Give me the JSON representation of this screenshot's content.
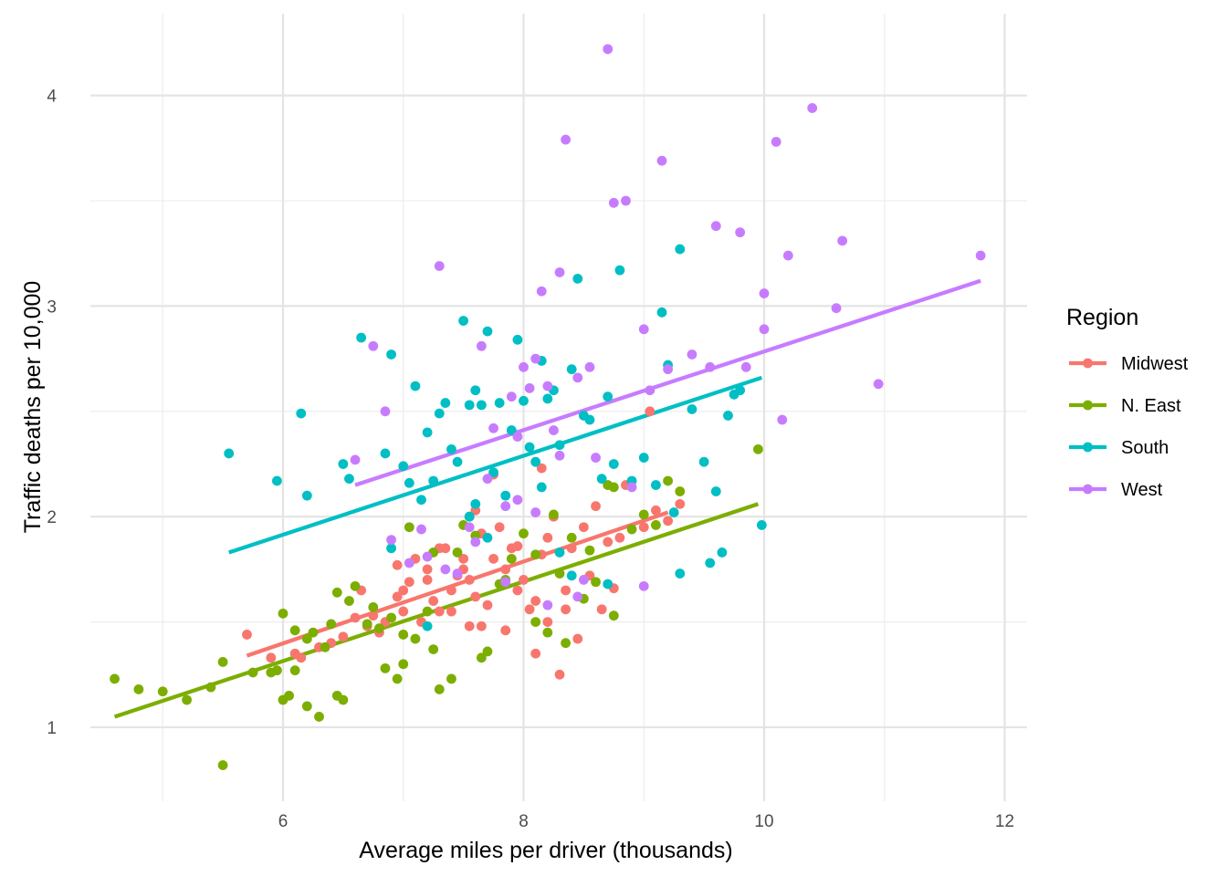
{
  "chart_data": {
    "type": "scatter",
    "title": "",
    "xlabel": "Average miles per driver (thousands)",
    "ylabel": "Traffic deaths per 10,000",
    "xlim": [
      4.4,
      12.2
    ],
    "ylim": [
      0.66,
      4.3
    ],
    "x_ticks": [
      6,
      8,
      10,
      12
    ],
    "y_ticks": [
      1,
      2,
      3,
      4
    ],
    "grid": true,
    "legend": {
      "title": "Region",
      "placement": "right"
    },
    "series": [
      {
        "name": "Midwest",
        "color": "#F8766D",
        "trend": {
          "x": [
            5.7,
            9.2
          ],
          "y": [
            1.34,
            2.02
          ]
        },
        "points": [
          [
            5.7,
            1.44
          ],
          [
            5.9,
            1.33
          ],
          [
            6.1,
            1.35
          ],
          [
            6.15,
            1.33
          ],
          [
            6.3,
            1.38
          ],
          [
            6.5,
            1.43
          ],
          [
            6.6,
            1.52
          ],
          [
            6.65,
            1.65
          ],
          [
            6.7,
            1.48
          ],
          [
            6.75,
            1.53
          ],
          [
            6.8,
            1.45
          ],
          [
            6.85,
            1.5
          ],
          [
            6.9,
            1.52
          ],
          [
            6.95,
            1.62
          ],
          [
            7.0,
            1.55
          ],
          [
            7.0,
            1.65
          ],
          [
            7.05,
            1.69
          ],
          [
            7.1,
            1.8
          ],
          [
            7.15,
            1.5
          ],
          [
            7.2,
            1.75
          ],
          [
            7.25,
            1.6
          ],
          [
            7.3,
            1.55
          ],
          [
            7.35,
            1.85
          ],
          [
            7.4,
            1.65
          ],
          [
            7.45,
            1.72
          ],
          [
            7.5,
            1.8
          ],
          [
            7.5,
            1.75
          ],
          [
            7.55,
            1.7
          ],
          [
            7.6,
            1.62
          ],
          [
            7.65,
            1.92
          ],
          [
            7.7,
            1.58
          ],
          [
            7.75,
            1.8
          ],
          [
            7.8,
            1.95
          ],
          [
            7.85,
            1.75
          ],
          [
            7.9,
            1.85
          ],
          [
            7.95,
            1.65
          ],
          [
            8.0,
            1.7
          ],
          [
            8.05,
            1.56
          ],
          [
            8.1,
            1.35
          ],
          [
            8.15,
            1.82
          ],
          [
            8.2,
            1.9
          ],
          [
            8.25,
            2.0
          ],
          [
            8.3,
            1.25
          ],
          [
            8.35,
            1.65
          ],
          [
            8.4,
            1.85
          ],
          [
            8.45,
            1.42
          ],
          [
            8.5,
            1.95
          ],
          [
            8.55,
            1.72
          ],
          [
            8.6,
            2.05
          ],
          [
            8.65,
            1.56
          ],
          [
            8.7,
            1.88
          ],
          [
            8.75,
            1.66
          ],
          [
            8.8,
            1.9
          ],
          [
            8.85,
            2.15
          ],
          [
            9.0,
            1.95
          ],
          [
            9.05,
            2.5
          ],
          [
            9.1,
            2.03
          ],
          [
            9.2,
            1.98
          ],
          [
            9.3,
            2.06
          ],
          [
            7.3,
            1.85
          ],
          [
            7.55,
            1.48
          ],
          [
            7.85,
            1.46
          ],
          [
            6.4,
            1.4
          ],
          [
            8.2,
            1.5
          ],
          [
            7.6,
            2.03
          ],
          [
            8.1,
            1.6
          ],
          [
            7.75,
            2.2
          ],
          [
            8.15,
            2.23
          ],
          [
            7.4,
            1.55
          ],
          [
            6.95,
            1.77
          ],
          [
            7.2,
            1.7
          ],
          [
            7.65,
            1.48
          ],
          [
            7.95,
            1.86
          ],
          [
            8.35,
            1.56
          ]
        ]
      },
      {
        "name": "N. East",
        "color": "#7CAE00",
        "trend": {
          "x": [
            4.6,
            9.95
          ],
          "y": [
            1.05,
            2.06
          ]
        },
        "points": [
          [
            4.6,
            1.23
          ],
          [
            4.8,
            1.18
          ],
          [
            5.0,
            1.17
          ],
          [
            5.2,
            1.13
          ],
          [
            5.4,
            1.19
          ],
          [
            5.5,
            1.31
          ],
          [
            5.5,
            0.82
          ],
          [
            5.75,
            1.26
          ],
          [
            5.9,
            1.26
          ],
          [
            6.0,
            1.13
          ],
          [
            6.05,
            1.15
          ],
          [
            6.1,
            1.27
          ],
          [
            6.2,
            1.1
          ],
          [
            6.25,
            1.45
          ],
          [
            6.3,
            1.05
          ],
          [
            6.35,
            1.38
          ],
          [
            6.4,
            1.49
          ],
          [
            6.45,
            1.15
          ],
          [
            6.5,
            1.13
          ],
          [
            6.55,
            1.6
          ],
          [
            6.6,
            1.67
          ],
          [
            6.7,
            1.49
          ],
          [
            6.8,
            1.47
          ],
          [
            6.85,
            1.28
          ],
          [
            6.9,
            1.52
          ],
          [
            6.95,
            1.23
          ],
          [
            7.0,
            1.3
          ],
          [
            7.05,
            1.95
          ],
          [
            7.1,
            1.42
          ],
          [
            7.2,
            1.55
          ],
          [
            7.25,
            1.37
          ],
          [
            7.3,
            1.18
          ],
          [
            7.4,
            1.23
          ],
          [
            7.45,
            1.83
          ],
          [
            7.5,
            1.96
          ],
          [
            7.55,
            2.0
          ],
          [
            7.6,
            1.91
          ],
          [
            7.65,
            1.33
          ],
          [
            7.7,
            1.36
          ],
          [
            7.8,
            1.68
          ],
          [
            7.85,
            1.7
          ],
          [
            7.9,
            1.8
          ],
          [
            8.0,
            1.92
          ],
          [
            8.1,
            1.82
          ],
          [
            8.1,
            1.5
          ],
          [
            8.2,
            1.45
          ],
          [
            8.25,
            2.01
          ],
          [
            8.3,
            1.73
          ],
          [
            8.4,
            1.9
          ],
          [
            8.5,
            1.61
          ],
          [
            8.6,
            1.69
          ],
          [
            8.7,
            2.15
          ],
          [
            8.75,
            1.53
          ],
          [
            8.9,
            1.94
          ],
          [
            9.0,
            2.01
          ],
          [
            9.1,
            1.96
          ],
          [
            9.2,
            2.17
          ],
          [
            9.3,
            2.12
          ],
          [
            9.95,
            2.32
          ],
          [
            6.0,
            1.54
          ],
          [
            6.1,
            1.46
          ],
          [
            6.45,
            1.64
          ],
          [
            6.75,
            1.57
          ],
          [
            7.0,
            1.44
          ],
          [
            7.25,
            1.83
          ],
          [
            8.35,
            1.4
          ],
          [
            8.55,
            1.84
          ],
          [
            8.75,
            2.14
          ],
          [
            6.2,
            1.42
          ],
          [
            5.95,
            1.27
          ]
        ]
      },
      {
        "name": "South",
        "color": "#00BFC4",
        "trend": {
          "x": [
            5.55,
            9.98
          ],
          "y": [
            1.83,
            2.66
          ]
        },
        "points": [
          [
            5.55,
            2.3
          ],
          [
            5.95,
            2.17
          ],
          [
            6.15,
            2.49
          ],
          [
            6.2,
            2.1
          ],
          [
            6.5,
            2.25
          ],
          [
            6.55,
            2.18
          ],
          [
            6.65,
            2.85
          ],
          [
            6.85,
            2.3
          ],
          [
            6.9,
            2.77
          ],
          [
            7.0,
            2.24
          ],
          [
            7.05,
            2.16
          ],
          [
            7.1,
            2.62
          ],
          [
            7.15,
            2.08
          ],
          [
            7.2,
            2.4
          ],
          [
            7.25,
            2.17
          ],
          [
            7.3,
            2.49
          ],
          [
            7.35,
            2.54
          ],
          [
            7.4,
            2.32
          ],
          [
            7.45,
            2.26
          ],
          [
            7.5,
            2.93
          ],
          [
            7.55,
            2.53
          ],
          [
            7.6,
            2.06
          ],
          [
            7.65,
            2.53
          ],
          [
            7.7,
            2.88
          ],
          [
            7.75,
            2.21
          ],
          [
            7.8,
            2.54
          ],
          [
            7.85,
            2.1
          ],
          [
            7.9,
            2.41
          ],
          [
            7.95,
            2.84
          ],
          [
            8.0,
            2.55
          ],
          [
            8.05,
            2.33
          ],
          [
            8.1,
            2.26
          ],
          [
            8.15,
            2.74
          ],
          [
            8.2,
            2.56
          ],
          [
            8.25,
            2.6
          ],
          [
            8.3,
            2.34
          ],
          [
            8.4,
            2.7
          ],
          [
            8.45,
            3.13
          ],
          [
            8.5,
            2.48
          ],
          [
            8.55,
            2.46
          ],
          [
            8.65,
            2.18
          ],
          [
            8.7,
            2.57
          ],
          [
            8.75,
            2.25
          ],
          [
            8.8,
            3.17
          ],
          [
            8.9,
            2.17
          ],
          [
            9.0,
            2.28
          ],
          [
            9.1,
            2.15
          ],
          [
            9.15,
            2.97
          ],
          [
            9.2,
            2.72
          ],
          [
            9.3,
            3.27
          ],
          [
            9.4,
            2.51
          ],
          [
            9.5,
            2.26
          ],
          [
            9.6,
            2.12
          ],
          [
            9.7,
            2.48
          ],
          [
            9.75,
            2.58
          ],
          [
            9.8,
            2.6
          ],
          [
            9.98,
            1.96
          ],
          [
            7.55,
            2.0
          ],
          [
            7.7,
            1.9
          ],
          [
            8.3,
            1.83
          ],
          [
            8.4,
            1.72
          ],
          [
            8.7,
            1.68
          ],
          [
            9.3,
            1.73
          ],
          [
            9.55,
            1.78
          ],
          [
            9.65,
            1.83
          ],
          [
            7.2,
            1.48
          ],
          [
            6.9,
            1.85
          ],
          [
            7.6,
            2.6
          ],
          [
            8.15,
            2.14
          ],
          [
            9.25,
            2.02
          ]
        ]
      },
      {
        "name": "West",
        "color": "#C77CFF",
        "trend": {
          "x": [
            6.6,
            11.8
          ],
          "y": [
            2.15,
            3.12
          ]
        },
        "points": [
          [
            6.6,
            2.27
          ],
          [
            6.75,
            2.81
          ],
          [
            6.85,
            2.5
          ],
          [
            7.05,
            1.78
          ],
          [
            7.15,
            1.94
          ],
          [
            7.2,
            1.81
          ],
          [
            7.3,
            3.19
          ],
          [
            7.35,
            1.75
          ],
          [
            7.45,
            1.73
          ],
          [
            7.55,
            1.95
          ],
          [
            7.65,
            2.81
          ],
          [
            7.7,
            2.18
          ],
          [
            7.75,
            2.42
          ],
          [
            7.85,
            2.05
          ],
          [
            7.9,
            2.57
          ],
          [
            7.95,
            2.08
          ],
          [
            8.0,
            2.71
          ],
          [
            8.05,
            2.61
          ],
          [
            8.1,
            2.75
          ],
          [
            8.15,
            3.07
          ],
          [
            8.2,
            2.62
          ],
          [
            8.25,
            2.41
          ],
          [
            8.3,
            3.16
          ],
          [
            8.35,
            3.79
          ],
          [
            8.45,
            2.66
          ],
          [
            8.5,
            1.7
          ],
          [
            8.55,
            2.71
          ],
          [
            8.6,
            2.28
          ],
          [
            8.7,
            4.22
          ],
          [
            8.75,
            3.49
          ],
          [
            8.85,
            3.5
          ],
          [
            8.9,
            2.14
          ],
          [
            9.0,
            2.89
          ],
          [
            9.05,
            2.6
          ],
          [
            9.15,
            3.69
          ],
          [
            9.2,
            2.7
          ],
          [
            9.4,
            2.77
          ],
          [
            9.55,
            2.71
          ],
          [
            9.6,
            3.38
          ],
          [
            9.8,
            3.35
          ],
          [
            9.85,
            2.71
          ],
          [
            10.0,
            3.06
          ],
          [
            10.0,
            2.89
          ],
          [
            10.1,
            3.78
          ],
          [
            10.15,
            2.46
          ],
          [
            10.2,
            3.24
          ],
          [
            10.4,
            3.94
          ],
          [
            10.6,
            2.99
          ],
          [
            10.65,
            3.31
          ],
          [
            10.95,
            2.63
          ],
          [
            11.8,
            3.24
          ],
          [
            9.0,
            1.67
          ],
          [
            8.45,
            1.62
          ],
          [
            8.2,
            1.58
          ],
          [
            7.85,
            1.69
          ],
          [
            6.9,
            1.89
          ],
          [
            7.6,
            1.88
          ],
          [
            8.1,
            2.02
          ],
          [
            7.95,
            2.38
          ],
          [
            8.3,
            2.29
          ]
        ]
      }
    ]
  }
}
